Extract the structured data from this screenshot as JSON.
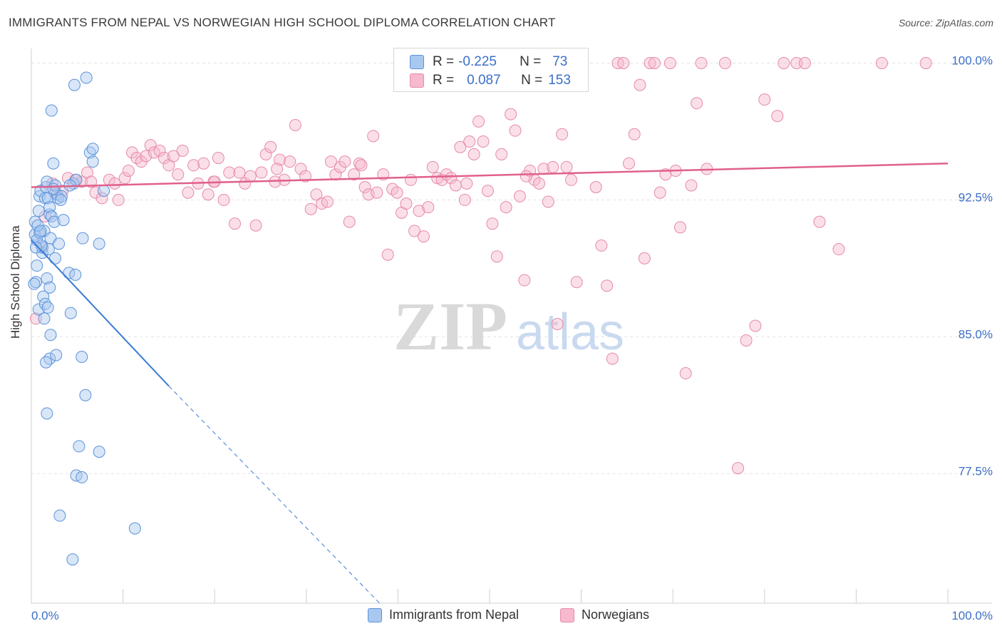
{
  "title": "IMMIGRANTS FROM NEPAL VS NORWEGIAN HIGH SCHOOL DIPLOMA CORRELATION CHART",
  "source": "Source: ZipAtlas.com",
  "watermark": {
    "zip": "ZIP",
    "atlas": "atlas"
  },
  "colors": {
    "nepal_fill": "#a9c8f0",
    "nepal_stroke": "#5b93d9",
    "nepal_line": "#3a7bd5",
    "norway_fill": "#f6b9cd",
    "norway_stroke": "#e58aa8",
    "norway_line": "#e0608e",
    "tick_label": "#3c6fc8",
    "grid": "#e2e2e2"
  },
  "stats": [
    {
      "r_label": "R =",
      "r_value": "-0.225",
      "n_label": "N =",
      "n_value": "73"
    },
    {
      "r_label": "R =",
      "r_value": "0.087",
      "n_label": "N =",
      "n_value": "153"
    }
  ],
  "legend": [
    {
      "label": "Immigrants from Nepal"
    },
    {
      "label": "Norwegians"
    }
  ],
  "chart_data": {
    "type": "scatter",
    "title": "IMMIGRANTS FROM NEPAL VS NORWEGIAN HIGH SCHOOL DIPLOMA CORRELATION CHART",
    "xlabel": "",
    "ylabel": "High School Diploma",
    "xlim": [
      0,
      100
    ],
    "ylim": [
      70.4,
      100.8
    ],
    "x_tick_labels": [
      "0.0%",
      "100.0%"
    ],
    "y_ticks": [
      77.5,
      85.0,
      92.5,
      100.0
    ],
    "y_tick_labels": [
      "77.5%",
      "85.0%",
      "92.5%",
      "100.0%"
    ],
    "grid": true,
    "legend_position": "bottom",
    "series": [
      {
        "name": "Immigrants from Nepal",
        "trend": {
          "x": [
            0.0,
            15.0
          ],
          "y": [
            90.3,
            82.3
          ],
          "dashed_to": [
            38.0,
            70.4
          ]
        },
        "points": [
          [
            0.4,
            91.3
          ],
          [
            0.4,
            90.6
          ],
          [
            0.6,
            90.3
          ],
          [
            0.8,
            91.9
          ],
          [
            0.9,
            92.7
          ],
          [
            1.0,
            93.0
          ],
          [
            1.2,
            89.6
          ],
          [
            1.2,
            89.9
          ],
          [
            0.5,
            88.0
          ],
          [
            0.8,
            86.5
          ],
          [
            1.4,
            90.8
          ],
          [
            1.5,
            92.6
          ],
          [
            1.6,
            93.2
          ],
          [
            1.7,
            93.5
          ],
          [
            1.8,
            92.6
          ],
          [
            2.0,
            91.7
          ],
          [
            2.0,
            92.1
          ],
          [
            2.2,
            91.6
          ],
          [
            2.1,
            90.4
          ],
          [
            1.9,
            89.8
          ],
          [
            2.5,
            91.3
          ],
          [
            2.6,
            89.3
          ],
          [
            2.8,
            92.8
          ],
          [
            2.9,
            92.6
          ],
          [
            3.0,
            90.1
          ],
          [
            3.3,
            92.7
          ],
          [
            3.5,
            91.4
          ],
          [
            1.7,
            88.2
          ],
          [
            2.0,
            87.7
          ],
          [
            1.3,
            87.2
          ],
          [
            1.5,
            86.8
          ],
          [
            1.8,
            86.6
          ],
          [
            2.1,
            85.1
          ],
          [
            2.0,
            83.8
          ],
          [
            1.6,
            83.6
          ],
          [
            2.7,
            84.0
          ],
          [
            4.1,
            88.5
          ],
          [
            4.3,
            86.3
          ],
          [
            4.6,
            93.4
          ],
          [
            4.9,
            93.6
          ],
          [
            4.8,
            88.4
          ],
          [
            5.6,
            90.4
          ],
          [
            5.5,
            83.9
          ],
          [
            5.9,
            81.8
          ],
          [
            1.7,
            80.8
          ],
          [
            5.2,
            79.0
          ],
          [
            7.4,
            78.7
          ],
          [
            4.9,
            77.4
          ],
          [
            5.5,
            77.3
          ],
          [
            3.1,
            75.2
          ],
          [
            11.3,
            74.5
          ],
          [
            4.5,
            72.8
          ],
          [
            6.0,
            99.2
          ],
          [
            4.7,
            98.8
          ],
          [
            2.2,
            97.4
          ],
          [
            6.4,
            95.1
          ],
          [
            6.7,
            95.3
          ],
          [
            2.4,
            94.5
          ],
          [
            6.7,
            94.6
          ],
          [
            7.9,
            93.0
          ],
          [
            7.4,
            90.1
          ],
          [
            0.6,
            88.9
          ],
          [
            0.3,
            87.9
          ],
          [
            0.9,
            90.7
          ],
          [
            1.1,
            90.0
          ],
          [
            3.2,
            92.5
          ],
          [
            2.6,
            93.3
          ],
          [
            1.4,
            86.0
          ],
          [
            0.7,
            91.1
          ],
          [
            4.2,
            93.3
          ],
          [
            2.4,
            93.1
          ],
          [
            1.0,
            90.8
          ],
          [
            0.5,
            89.9
          ]
        ]
      },
      {
        "name": "Norwegians",
        "trend": {
          "x": [
            0.0,
            100.0
          ],
          "y": [
            93.2,
            94.5
          ]
        },
        "points": [
          [
            0.5,
            86.0
          ],
          [
            1.2,
            89.9
          ],
          [
            1.5,
            91.6
          ],
          [
            2.3,
            93.4
          ],
          [
            2.6,
            92.9
          ],
          [
            3.4,
            93.0
          ],
          [
            4.0,
            93.7
          ],
          [
            4.8,
            93.6
          ],
          [
            5.5,
            93.5
          ],
          [
            6.1,
            94.0
          ],
          [
            6.5,
            93.5
          ],
          [
            7.0,
            92.9
          ],
          [
            7.7,
            92.6
          ],
          [
            8.5,
            93.6
          ],
          [
            9.1,
            93.4
          ],
          [
            9.5,
            92.5
          ],
          [
            10.2,
            93.7
          ],
          [
            10.6,
            94.1
          ],
          [
            11.0,
            95.1
          ],
          [
            11.5,
            94.8
          ],
          [
            12.0,
            94.6
          ],
          [
            12.5,
            94.9
          ],
          [
            13.0,
            95.5
          ],
          [
            13.4,
            95.1
          ],
          [
            14.0,
            95.2
          ],
          [
            14.5,
            94.8
          ],
          [
            15.0,
            94.4
          ],
          [
            15.5,
            94.9
          ],
          [
            16.0,
            93.9
          ],
          [
            16.5,
            95.2
          ],
          [
            17.1,
            92.9
          ],
          [
            17.7,
            94.4
          ],
          [
            18.2,
            93.4
          ],
          [
            18.8,
            94.5
          ],
          [
            19.3,
            92.8
          ],
          [
            19.9,
            93.5
          ],
          [
            20.4,
            94.8
          ],
          [
            21.0,
            92.5
          ],
          [
            21.6,
            94.0
          ],
          [
            22.2,
            91.2
          ],
          [
            22.7,
            94.0
          ],
          [
            23.3,
            93.4
          ],
          [
            23.9,
            93.8
          ],
          [
            24.5,
            91.1
          ],
          [
            25.1,
            94.0
          ],
          [
            25.6,
            95.0
          ],
          [
            26.1,
            95.4
          ],
          [
            26.6,
            93.5
          ],
          [
            27.1,
            94.7
          ],
          [
            27.6,
            93.6
          ],
          [
            28.2,
            94.6
          ],
          [
            28.8,
            96.6
          ],
          [
            29.4,
            94.2
          ],
          [
            29.9,
            93.8
          ],
          [
            30.5,
            92.0
          ],
          [
            31.1,
            92.8
          ],
          [
            31.7,
            92.3
          ],
          [
            32.3,
            92.4
          ],
          [
            32.7,
            94.6
          ],
          [
            33.2,
            93.9
          ],
          [
            33.7,
            94.3
          ],
          [
            34.2,
            94.6
          ],
          [
            34.7,
            91.3
          ],
          [
            35.2,
            93.9
          ],
          [
            35.8,
            94.5
          ],
          [
            36.4,
            93.2
          ],
          [
            36.8,
            92.8
          ],
          [
            37.3,
            96.0
          ],
          [
            37.7,
            92.9
          ],
          [
            38.4,
            93.9
          ],
          [
            38.9,
            89.5
          ],
          [
            39.4,
            93.1
          ],
          [
            39.9,
            92.9
          ],
          [
            40.4,
            91.8
          ],
          [
            40.9,
            92.3
          ],
          [
            41.4,
            93.6
          ],
          [
            41.8,
            90.8
          ],
          [
            42.3,
            91.9
          ],
          [
            42.8,
            90.5
          ],
          [
            43.3,
            92.1
          ],
          [
            43.8,
            94.3
          ],
          [
            44.3,
            93.7
          ],
          [
            44.8,
            93.6
          ],
          [
            45.3,
            93.9
          ],
          [
            45.8,
            93.7
          ],
          [
            46.3,
            93.3
          ],
          [
            46.8,
            95.4
          ],
          [
            47.3,
            92.5
          ],
          [
            47.8,
            95.7
          ],
          [
            48.3,
            95.0
          ],
          [
            48.8,
            96.8
          ],
          [
            49.3,
            95.7
          ],
          [
            49.8,
            93.0
          ],
          [
            50.3,
            91.2
          ],
          [
            50.8,
            89.4
          ],
          [
            51.3,
            95.0
          ],
          [
            51.8,
            92.1
          ],
          [
            52.3,
            97.2
          ],
          [
            52.8,
            96.3
          ],
          [
            53.3,
            92.7
          ],
          [
            53.8,
            88.1
          ],
          [
            54.4,
            94.1
          ],
          [
            54.9,
            93.6
          ],
          [
            55.4,
            93.4
          ],
          [
            55.9,
            94.2
          ],
          [
            56.4,
            92.4
          ],
          [
            56.9,
            94.3
          ],
          [
            57.4,
            85.7
          ],
          [
            57.9,
            96.1
          ],
          [
            58.4,
            94.3
          ],
          [
            58.9,
            93.6
          ],
          [
            59.5,
            88.0
          ],
          [
            60.0,
            100.0
          ],
          [
            61.6,
            93.2
          ],
          [
            62.2,
            90.0
          ],
          [
            62.8,
            87.8
          ],
          [
            63.4,
            83.8
          ],
          [
            64.0,
            100.0
          ],
          [
            64.6,
            100.0
          ],
          [
            65.2,
            94.5
          ],
          [
            65.8,
            96.1
          ],
          [
            66.4,
            98.8
          ],
          [
            66.9,
            89.3
          ],
          [
            67.5,
            100.0
          ],
          [
            68.0,
            100.0
          ],
          [
            68.6,
            92.9
          ],
          [
            69.2,
            93.9
          ],
          [
            69.7,
            100.0
          ],
          [
            70.3,
            94.1
          ],
          [
            70.8,
            91.0
          ],
          [
            71.4,
            83.0
          ],
          [
            72.0,
            93.3
          ],
          [
            72.6,
            97.8
          ],
          [
            73.1,
            100.0
          ],
          [
            73.7,
            94.2
          ],
          [
            75.7,
            100.0
          ],
          [
            77.1,
            77.8
          ],
          [
            78.0,
            84.8
          ],
          [
            79.0,
            85.6
          ],
          [
            80.0,
            98.0
          ],
          [
            81.4,
            97.1
          ],
          [
            82.1,
            100.0
          ],
          [
            83.5,
            100.0
          ],
          [
            84.4,
            100.0
          ],
          [
            86.0,
            91.3
          ],
          [
            88.1,
            89.8
          ],
          [
            92.8,
            100.0
          ],
          [
            97.6,
            100.0
          ],
          [
            54.0,
            93.8
          ],
          [
            20.0,
            93.5
          ],
          [
            36.0,
            94.4
          ],
          [
            26.8,
            94.2
          ],
          [
            47.5,
            93.4
          ]
        ]
      }
    ]
  }
}
